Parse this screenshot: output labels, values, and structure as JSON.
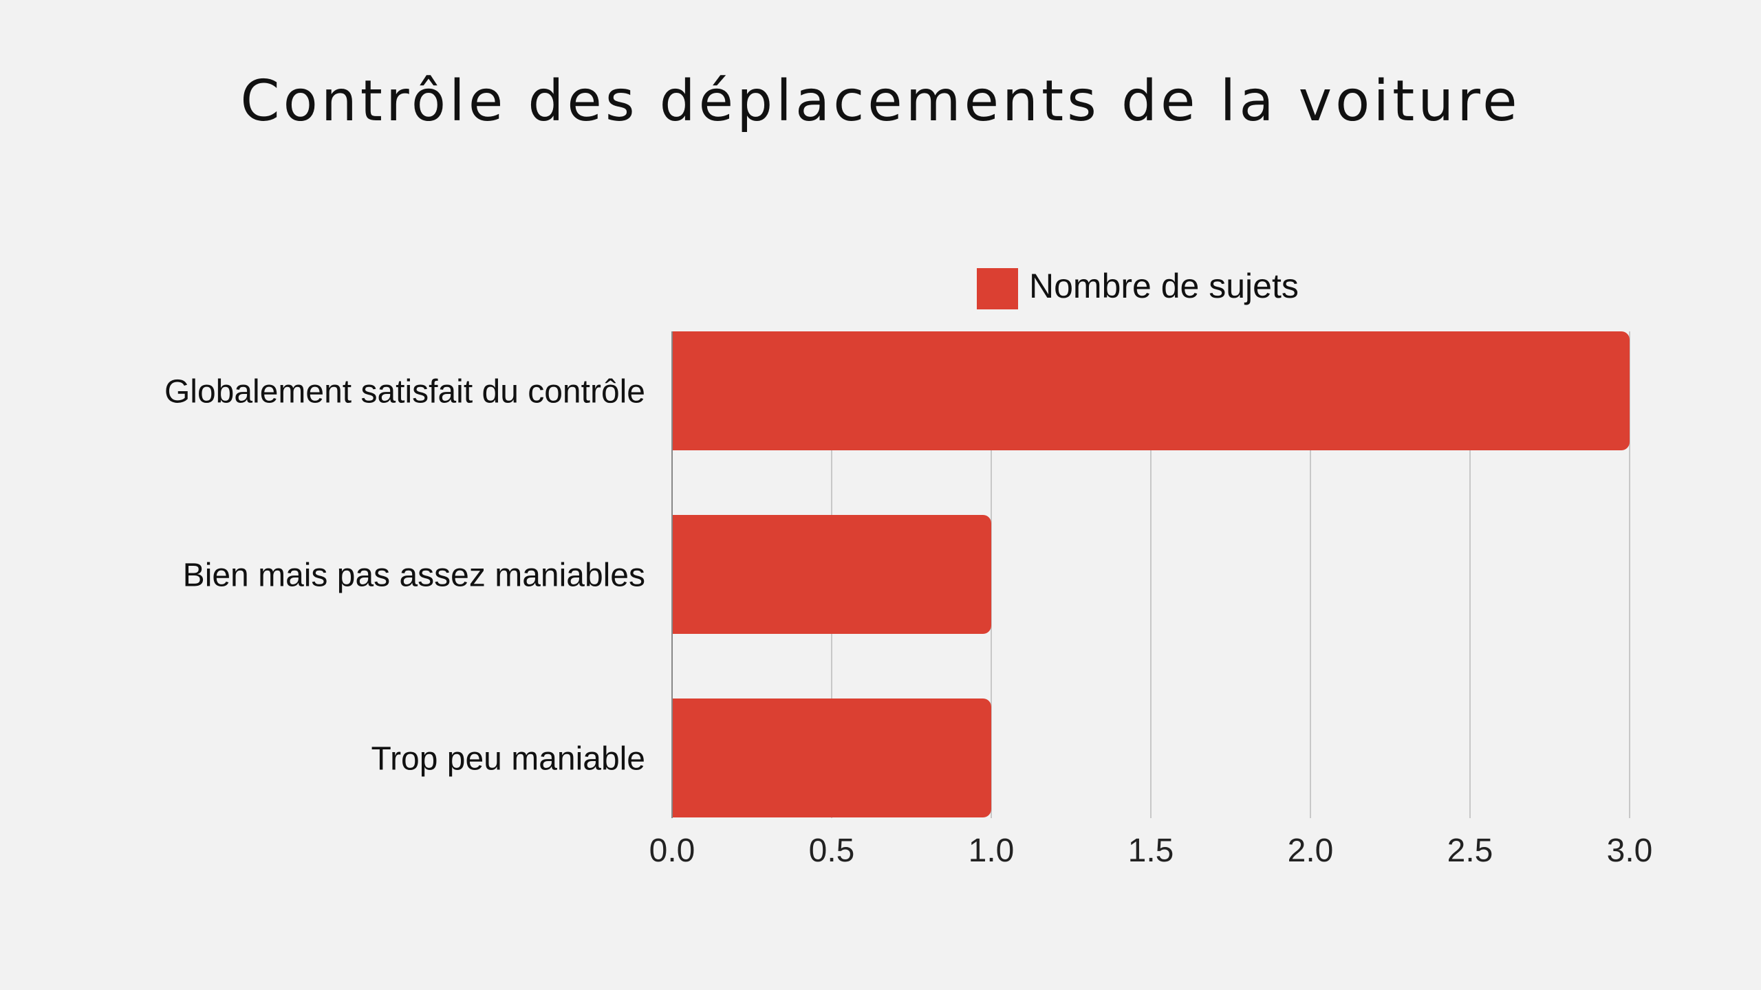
{
  "chart_data": {
    "type": "bar",
    "orientation": "horizontal",
    "title": "Contrôle des déplacements de la voiture",
    "categories": [
      "Globalement satisfait du contrôle",
      "Bien mais pas assez maniables",
      "Trop peu maniable"
    ],
    "series": [
      {
        "name": "Nombre de sujets",
        "values": [
          3,
          1,
          1
        ],
        "color": "#db4032"
      }
    ],
    "xlim": [
      0,
      3
    ],
    "x_ticks": [
      "0.0",
      "0.5",
      "1.0",
      "1.5",
      "2.0",
      "2.5",
      "3.0"
    ],
    "x_tick_values": [
      0,
      0.5,
      1,
      1.5,
      2,
      2.5,
      3
    ],
    "grid": "vertical",
    "legend_position": "top"
  },
  "colors": {
    "background": "#f2f2f2",
    "bar": "#db4032",
    "grid": "#c8c8c8",
    "axis": "#888888"
  }
}
